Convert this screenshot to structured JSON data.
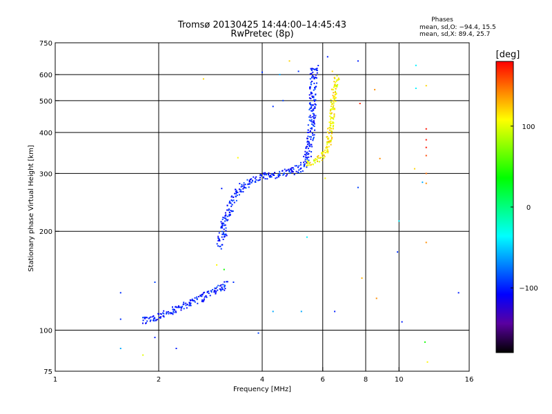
{
  "chart_data": {
    "type": "scatter",
    "title": "Tromsø 20130425 14:44:00–14:45:43",
    "subtitle": "RwPretec (8p)",
    "xlabel": "Frequency [MHz]",
    "ylabel": "Stationary phase Virtual Height [km]",
    "xscale": "log",
    "yscale": "log",
    "xlim": [
      1,
      16
    ],
    "ylim": [
      75,
      750
    ],
    "x_ticks": [
      1,
      2,
      4,
      6,
      8,
      10,
      16
    ],
    "y_ticks": [
      75,
      100,
      200,
      300,
      400,
      500,
      600,
      750
    ],
    "grid": true,
    "phases": {
      "title": "Phases",
      "line_o": "mean, sd,O: −94.4, 15.5",
      "line_x": "mean, sd,X:  89.4, 25.7"
    },
    "colorbar": {
      "label": "[deg]",
      "range": [
        -180,
        180
      ],
      "ticks": [
        -100,
        0,
        100
      ],
      "colors": [
        "#000000",
        "#5a00a0",
        "#0000ff",
        "#0080ff",
        "#00ffff",
        "#00ff80",
        "#00ff00",
        "#80ff00",
        "#ffff00",
        "#ff8000",
        "#ff0000"
      ]
    },
    "o_trace": {
      "name": "O-mode",
      "segments": [
        {
          "x": [
            1.8,
            1.9,
            2.0,
            2.1,
            2.2,
            2.35,
            2.5,
            2.65,
            2.8,
            2.95,
            3.1,
            3.15
          ],
          "y": [
            107,
            108,
            110,
            112,
            115,
            118,
            121,
            125,
            129,
            133,
            137,
            140
          ]
        },
        {
          "x": [
            3.0,
            3.02,
            3.05,
            3.1,
            3.1,
            3.15,
            3.2,
            3.25,
            3.3,
            3.35,
            3.4,
            3.45,
            3.5,
            3.6,
            3.7,
            3.8,
            3.9,
            4.0
          ],
          "y": [
            180,
            185,
            190,
            200,
            210,
            220,
            230,
            240,
            250,
            260,
            265,
            270,
            275,
            280,
            285,
            288,
            290,
            292
          ]
        },
        {
          "x": [
            4.0,
            4.2,
            4.4,
            4.6,
            4.8,
            5.0,
            5.2,
            5.3,
            5.4,
            5.45,
            5.5,
            5.55,
            5.6,
            5.62,
            5.65,
            5.7
          ],
          "y": [
            293,
            295,
            297,
            300,
            303,
            307,
            313,
            320,
            330,
            345,
            370,
            400,
            450,
            520,
            600,
            640
          ]
        }
      ]
    },
    "x_trace": {
      "name": "X-mode",
      "x": [
        5.4,
        5.6,
        5.8,
        5.9,
        6.0,
        6.1,
        6.2,
        6.25,
        6.3,
        6.35,
        6.4,
        6.45,
        6.5,
        6.55,
        6.6
      ],
      "y": [
        320,
        325,
        330,
        335,
        340,
        350,
        360,
        380,
        400,
        430,
        460,
        500,
        540,
        570,
        590
      ]
    },
    "scattered": [
      {
        "x": 1.55,
        "y": 130,
        "phase": -95
      },
      {
        "x": 1.55,
        "y": 108,
        "phase": -95
      },
      {
        "x": 1.55,
        "y": 88,
        "phase": -60
      },
      {
        "x": 1.8,
        "y": 84,
        "phase": 100
      },
      {
        "x": 1.95,
        "y": 95,
        "phase": -100
      },
      {
        "x": 1.95,
        "y": 140,
        "phase": -90
      },
      {
        "x": 2.25,
        "y": 88,
        "phase": -100
      },
      {
        "x": 2.7,
        "y": 582,
        "phase": 120
      },
      {
        "x": 2.95,
        "y": 158,
        "phase": 110
      },
      {
        "x": 3.05,
        "y": 270,
        "phase": -100
      },
      {
        "x": 3.1,
        "y": 153,
        "phase": 40
      },
      {
        "x": 3.3,
        "y": 140,
        "phase": -95
      },
      {
        "x": 3.4,
        "y": 335,
        "phase": 110
      },
      {
        "x": 3.9,
        "y": 98,
        "phase": -90
      },
      {
        "x": 4.0,
        "y": 610,
        "phase": -95
      },
      {
        "x": 4.3,
        "y": 480,
        "phase": -95
      },
      {
        "x": 4.3,
        "y": 114,
        "phase": -60
      },
      {
        "x": 4.5,
        "y": 600,
        "phase": -60
      },
      {
        "x": 4.6,
        "y": 500,
        "phase": -90
      },
      {
        "x": 4.8,
        "y": 660,
        "phase": 120
      },
      {
        "x": 5.1,
        "y": 614,
        "phase": -95
      },
      {
        "x": 5.2,
        "y": 114,
        "phase": -60
      },
      {
        "x": 5.4,
        "y": 192,
        "phase": -40
      },
      {
        "x": 6.1,
        "y": 290,
        "phase": 110
      },
      {
        "x": 6.4,
        "y": 614,
        "phase": 120
      },
      {
        "x": 6.5,
        "y": 114,
        "phase": -100
      },
      {
        "x": 6.2,
        "y": 680,
        "phase": -100
      },
      {
        "x": 7.6,
        "y": 660,
        "phase": -100
      },
      {
        "x": 7.6,
        "y": 272,
        "phase": -90
      },
      {
        "x": 7.7,
        "y": 490,
        "phase": 170
      },
      {
        "x": 7.8,
        "y": 144,
        "phase": 130
      },
      {
        "x": 8.5,
        "y": 540,
        "phase": 140
      },
      {
        "x": 8.6,
        "y": 125,
        "phase": 140
      },
      {
        "x": 8.8,
        "y": 333,
        "phase": 140
      },
      {
        "x": 9.9,
        "y": 173,
        "phase": -95
      },
      {
        "x": 10.0,
        "y": 215,
        "phase": -40
      },
      {
        "x": 10.2,
        "y": 106,
        "phase": -100
      },
      {
        "x": 11.2,
        "y": 640,
        "phase": -40
      },
      {
        "x": 11.1,
        "y": 310,
        "phase": 120
      },
      {
        "x": 11.2,
        "y": 545,
        "phase": -40
      },
      {
        "x": 11.7,
        "y": 282,
        "phase": -60
      },
      {
        "x": 11.9,
        "y": 92,
        "phase": 40
      },
      {
        "x": 12.0,
        "y": 185,
        "phase": 140
      },
      {
        "x": 12.1,
        "y": 80,
        "phase": 110
      },
      {
        "x": 12.0,
        "y": 410,
        "phase": 175
      },
      {
        "x": 12.0,
        "y": 380,
        "phase": 175
      },
      {
        "x": 12.0,
        "y": 360,
        "phase": 175
      },
      {
        "x": 12.0,
        "y": 340,
        "phase": 160
      },
      {
        "x": 12.0,
        "y": 300,
        "phase": 150
      },
      {
        "x": 12.0,
        "y": 280,
        "phase": 140
      },
      {
        "x": 12.0,
        "y": 555,
        "phase": 120
      },
      {
        "x": 14.9,
        "y": 130,
        "phase": -100
      }
    ]
  }
}
